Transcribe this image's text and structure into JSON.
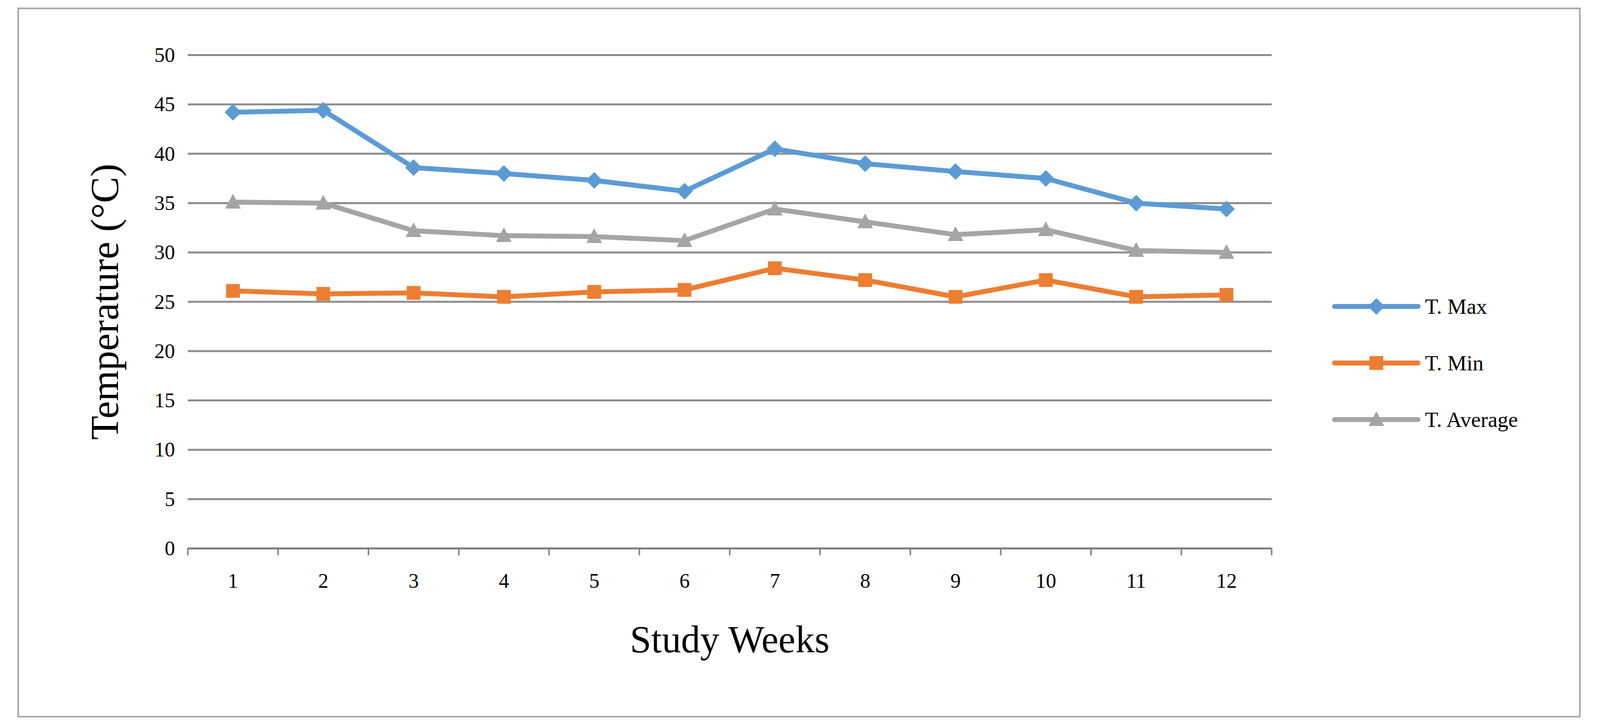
{
  "chart_data": {
    "type": "line",
    "x_label": "Study Weeks",
    "y_label": "Temperature (°C)",
    "categories": [
      "1",
      "2",
      "3",
      "4",
      "5",
      "6",
      "7",
      "8",
      "9",
      "10",
      "11",
      "12"
    ],
    "series": [
      {
        "name": "T. Max",
        "color": "#5b9bd5",
        "marker": "diamond",
        "values": [
          44.2,
          44.4,
          38.6,
          38.0,
          37.3,
          36.2,
          40.5,
          39.0,
          38.2,
          37.5,
          35.0,
          34.4
        ]
      },
      {
        "name": "T. Min",
        "color": "#ed7d31",
        "marker": "square",
        "values": [
          26.1,
          25.8,
          25.9,
          25.5,
          26.0,
          26.2,
          28.4,
          27.2,
          25.5,
          27.2,
          25.5,
          25.7
        ]
      },
      {
        "name": "T. Average",
        "color": "#a5a5a5",
        "marker": "triangle",
        "values": [
          35.1,
          35.0,
          32.2,
          31.7,
          31.6,
          31.2,
          34.4,
          33.1,
          31.8,
          32.3,
          30.2,
          30.0
        ]
      }
    ],
    "ylim": [
      0,
      50
    ],
    "yticks": [
      0,
      5,
      10,
      15,
      20,
      25,
      30,
      35,
      40,
      45,
      50
    ],
    "grid": true,
    "legend": "right"
  }
}
